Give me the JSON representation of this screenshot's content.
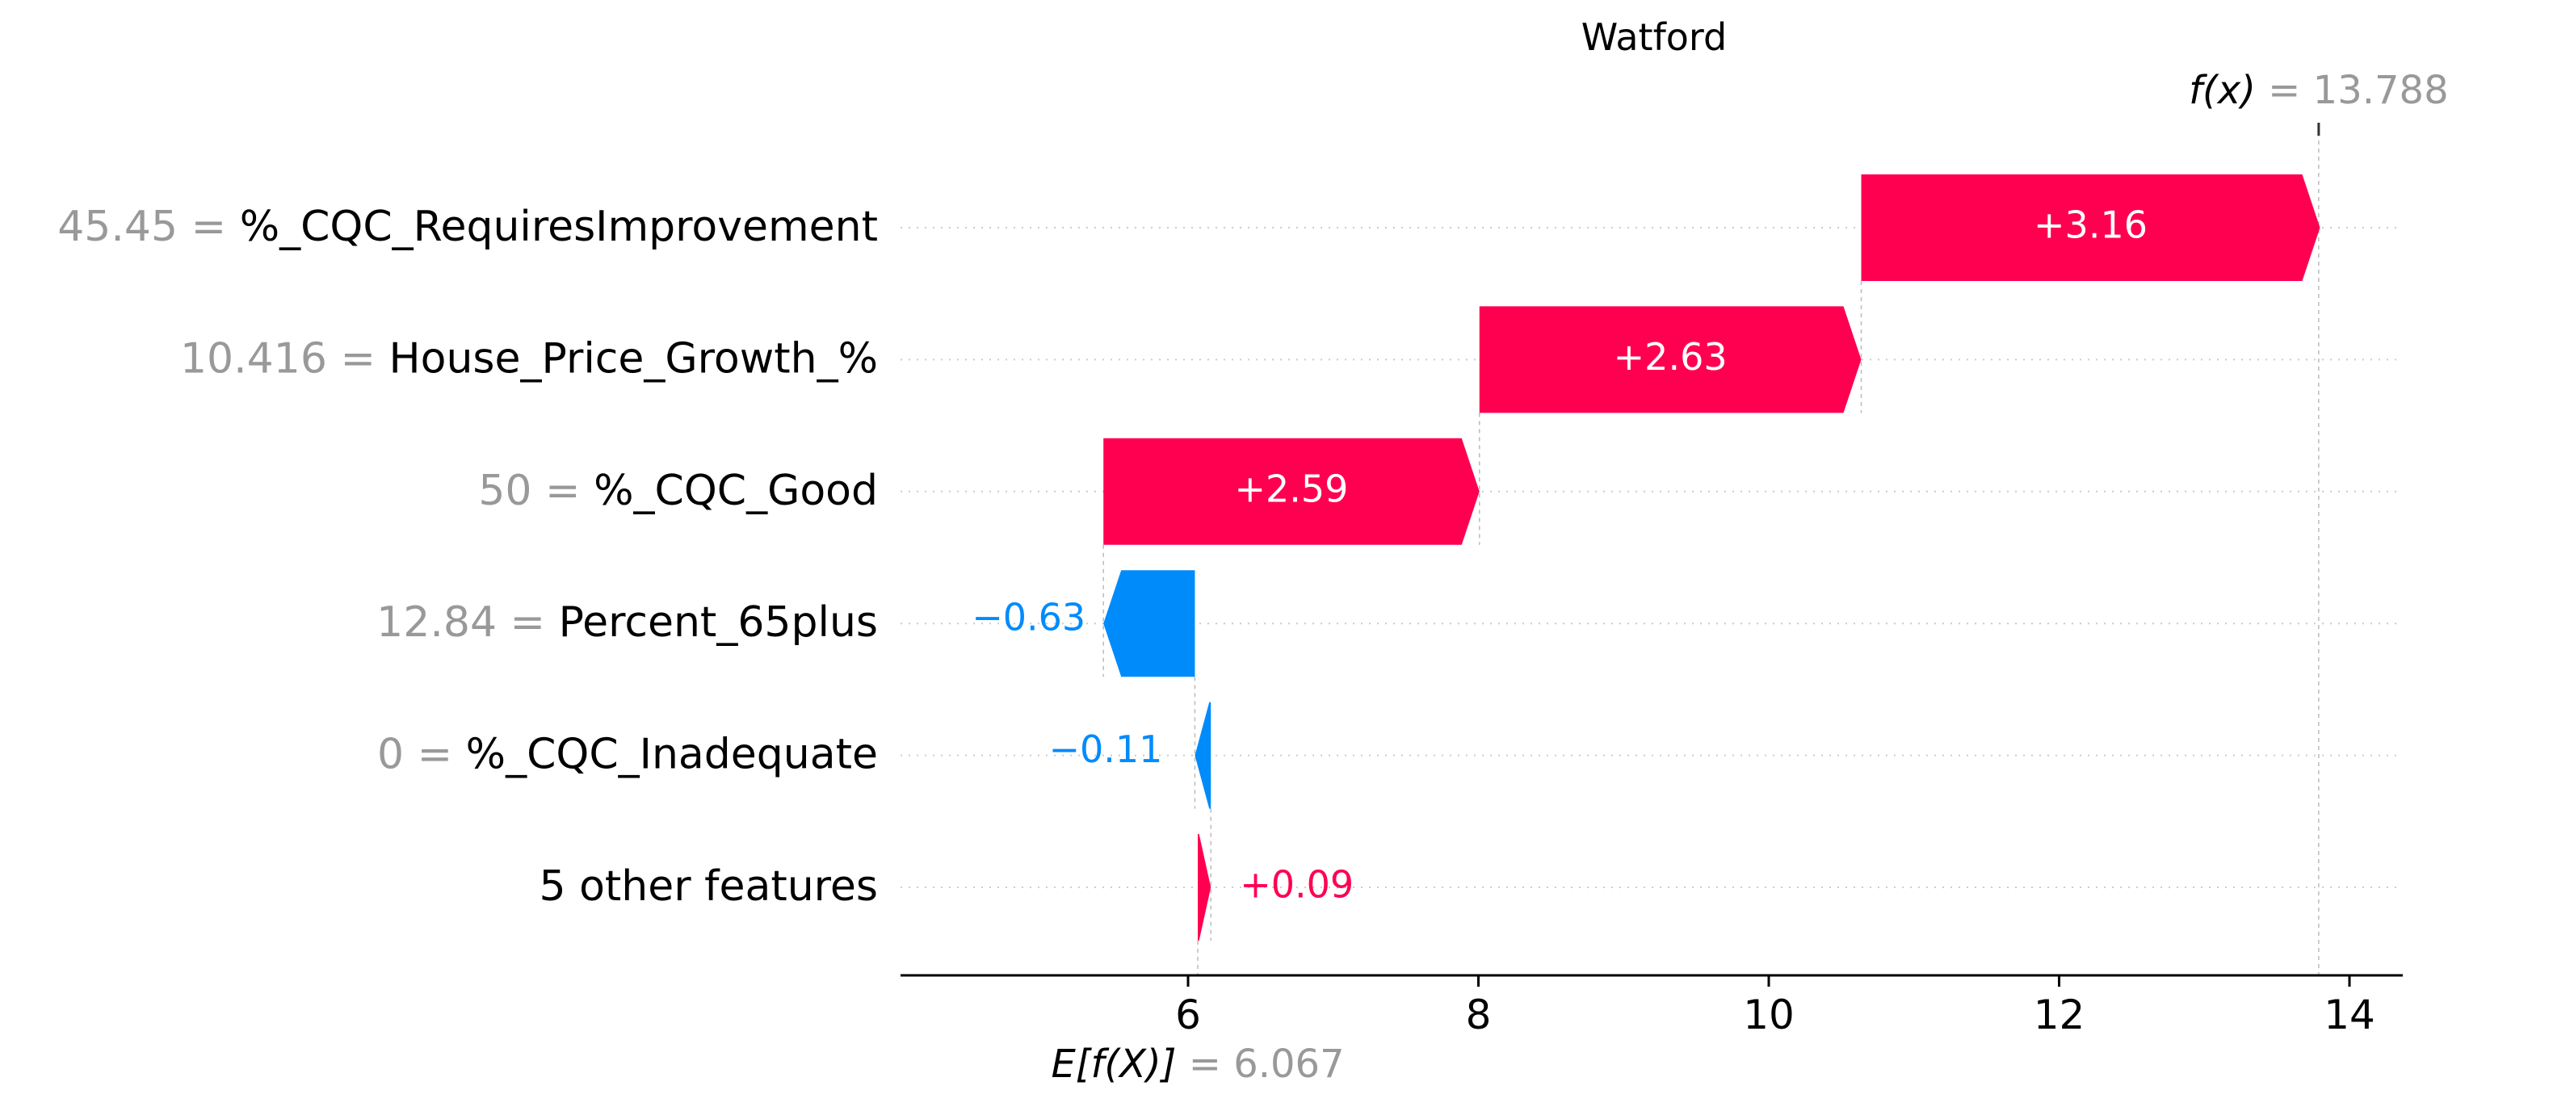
{
  "chart_data": {
    "type": "waterfall",
    "title": "Watford",
    "base_value": 6.067,
    "base_label": "E[f(X)]",
    "base_value_text": "= 6.067",
    "output_value": 13.788,
    "output_label": "f(x)",
    "output_value_text": "= 13.788",
    "xlim": [
      4.0,
      14.3
    ],
    "xticks": [
      6,
      8,
      10,
      12,
      14
    ],
    "xtick_labels": [
      "6",
      "8",
      "10",
      "12",
      "14"
    ],
    "grid": "dotted horizontal",
    "colors": {
      "positive": "#ff0051",
      "negative": "#008bfb",
      "reference": "#bbbbbb",
      "value_gray": "#999999"
    },
    "features": [
      {
        "value": "45.45",
        "name": "%_CQC_RequiresImprovement",
        "shap": 3.16,
        "label": "+3.16"
      },
      {
        "value": "10.416",
        "name": "House_Price_Growth_%",
        "shap": 2.63,
        "label": "+2.63"
      },
      {
        "value": "50",
        "name": "%_CQC_Good",
        "shap": 2.59,
        "label": "+2.59"
      },
      {
        "value": "12.84",
        "name": "Percent_65plus",
        "shap": -0.63,
        "label": "−0.63"
      },
      {
        "value": "0",
        "name": "%_CQC_Inadequate",
        "shap": -0.11,
        "label": "−0.11"
      },
      {
        "value": "",
        "name": "5 other features",
        "shap": 0.09,
        "label": "+0.09"
      }
    ],
    "value_separator": "="
  }
}
